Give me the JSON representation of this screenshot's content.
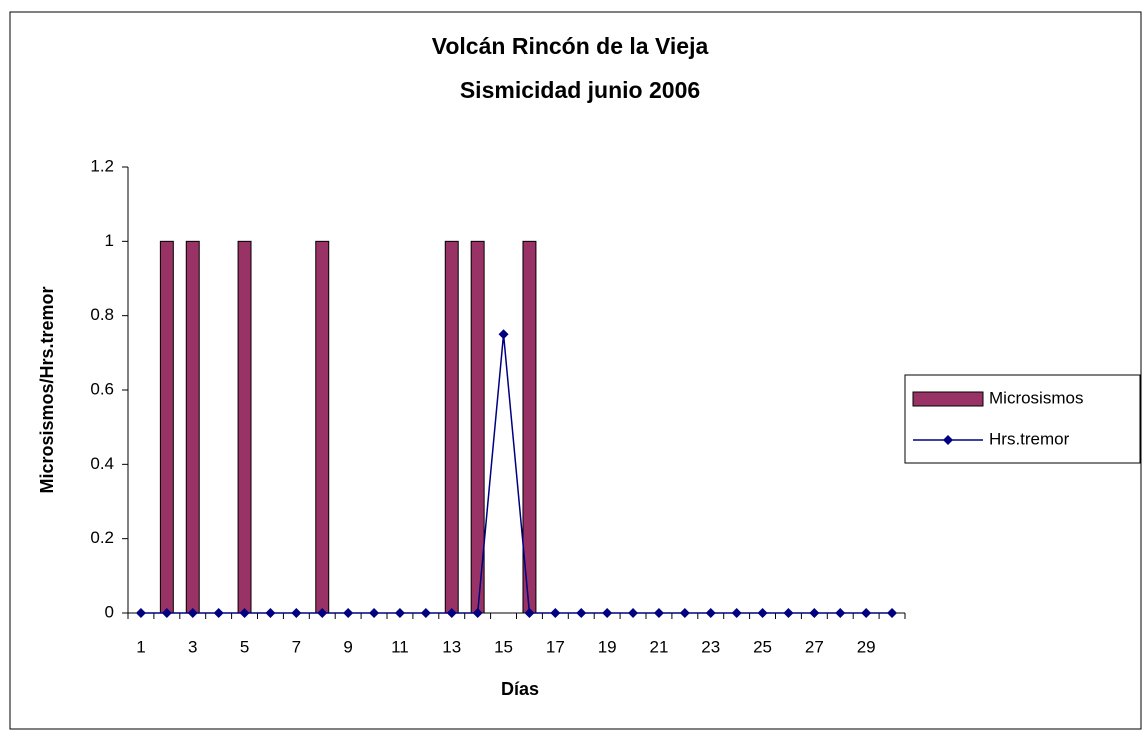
{
  "chart_data": {
    "type": "bar_line",
    "title": [
      "Volcán Rincón de la Vieja",
      "Sismicidad junio 2006"
    ],
    "xlabel": "Días",
    "ylabel": "Microsismos/Hrs.tremor",
    "categories": [
      1,
      null,
      3,
      null,
      5,
      null,
      7,
      null,
      9,
      null,
      11,
      null,
      13,
      null,
      15,
      null,
      17,
      null,
      19,
      null,
      21,
      null,
      23,
      null,
      25,
      null,
      27,
      null,
      29,
      null
    ],
    "series": [
      {
        "name": "Microsismos",
        "type": "bar",
        "color": "#993366",
        "values": [
          0,
          1,
          1,
          0,
          1,
          0,
          0,
          1,
          0,
          0,
          0,
          0,
          1,
          1,
          0,
          1,
          0,
          0,
          0,
          0,
          0,
          0,
          0,
          0,
          0,
          0,
          0,
          0,
          0,
          0
        ]
      },
      {
        "name": "Hrs.tremor",
        "type": "line",
        "color": "#000080",
        "values": [
          0,
          0,
          0,
          0,
          0,
          0,
          0,
          0,
          0,
          0,
          0,
          0,
          0,
          0,
          0.75,
          0,
          0,
          0,
          0,
          0,
          0,
          0,
          0,
          0,
          0,
          0,
          0,
          0,
          0,
          0
        ]
      }
    ],
    "ylim": [
      0,
      1.2
    ],
    "yticks": [
      0,
      0.2,
      0.4,
      0.6,
      0.8,
      1,
      1.2
    ],
    "legend": "right"
  }
}
